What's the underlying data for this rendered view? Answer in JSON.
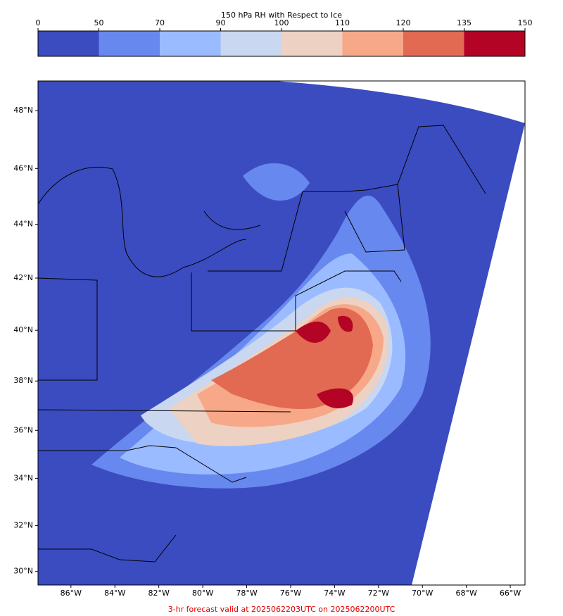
{
  "colorbar": {
    "title": "150 hPa RH with Respect to Ice",
    "ticks": [
      0,
      50,
      70,
      90,
      100,
      110,
      120,
      135,
      150
    ],
    "colors": [
      "#3b4cc0",
      "#6788ee",
      "#9abbff",
      "#c9d7f0",
      "#edd1c2",
      "#f7a889",
      "#e26952",
      "#b40426"
    ]
  },
  "map": {
    "xlim": [
      -87.5,
      -65.33
    ],
    "ylim": [
      29.4,
      49.0
    ],
    "xticks": [
      {
        "value": -86,
        "label": "86°W"
      },
      {
        "value": -84,
        "label": "84°W"
      },
      {
        "value": -82,
        "label": "82°W"
      },
      {
        "value": -80,
        "label": "80°W"
      },
      {
        "value": -78,
        "label": "78°W"
      },
      {
        "value": -76,
        "label": "76°W"
      },
      {
        "value": -74,
        "label": "74°W"
      },
      {
        "value": -72,
        "label": "72°W"
      },
      {
        "value": -70,
        "label": "70°W"
      },
      {
        "value": -68,
        "label": "68°W"
      },
      {
        "value": -66,
        "label": "66°W"
      }
    ],
    "yticks": [
      {
        "value": 48,
        "label": "48°N"
      },
      {
        "value": 46,
        "label": "46°N"
      },
      {
        "value": 44,
        "label": "44°N"
      },
      {
        "value": 42,
        "label": "42°N"
      },
      {
        "value": 40,
        "label": "40°N"
      },
      {
        "value": 38,
        "label": "38°N"
      },
      {
        "value": 36,
        "label": "36°N"
      },
      {
        "value": 34,
        "label": "34°N"
      },
      {
        "value": 32,
        "label": "32°N"
      },
      {
        "value": 30,
        "label": "30°N"
      }
    ]
  },
  "footer": "3-hr forecast valid at 2025062203UTC on 2025062200UTC"
}
